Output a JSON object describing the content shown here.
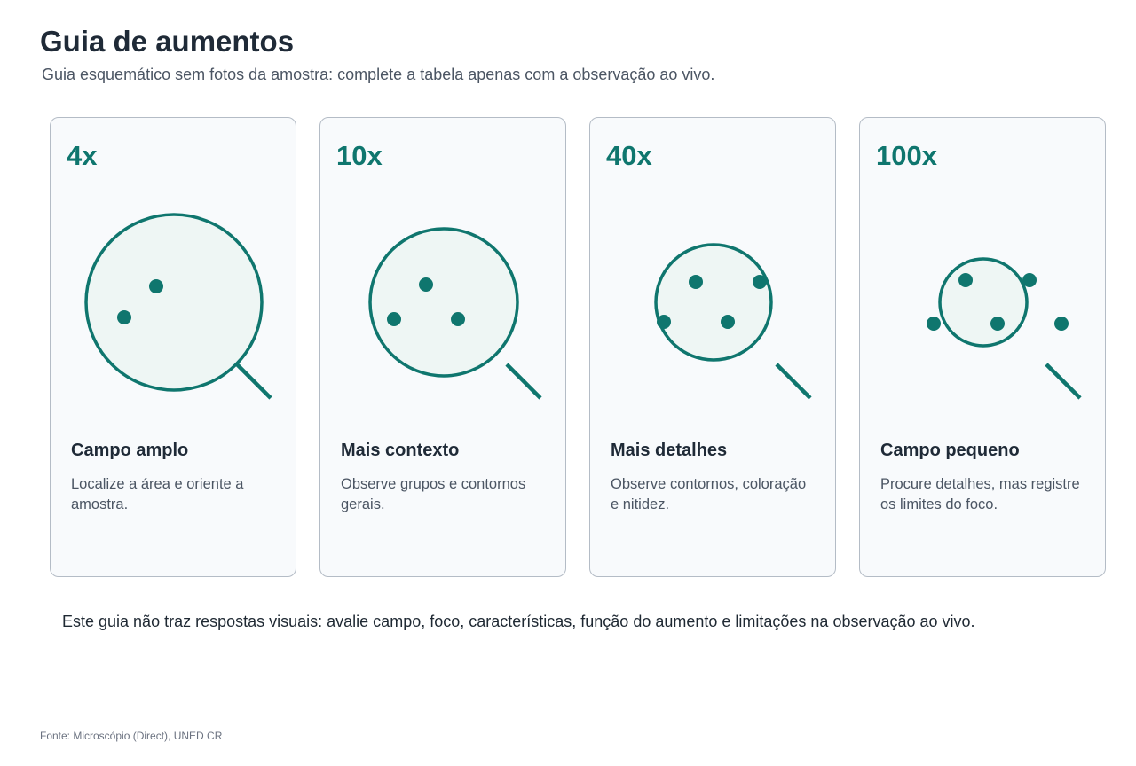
{
  "header": {
    "title": "Guia de aumentos",
    "subtitle": "Guia esquemático sem fotos da amostra: complete a tabela apenas com a observação ao vivo."
  },
  "colors": {
    "accent": "#0f766e",
    "lens_fill": "#eef6f4",
    "card_border": "#b4bcc6",
    "card_bg": "#f8fafc"
  },
  "cards": [
    {
      "label": "4x",
      "heading": "Campo amplo",
      "text": "Localize a área e oriente a amostra.",
      "icon": "magnifier-icon"
    },
    {
      "label": "10x",
      "heading": "Mais contexto",
      "text": "Observe grupos e contornos gerais.",
      "icon": "magnifier-icon"
    },
    {
      "label": "40x",
      "heading": "Mais detalhes",
      "text": "Observe contornos, coloração e nitidez.",
      "icon": "magnifier-icon"
    },
    {
      "label": "100x",
      "heading": "Campo pequeno",
      "text": "Procure detalhes, mas registre os limites do foco.",
      "icon": "magnifier-icon"
    }
  ],
  "note": "Este guia não traz respostas visuais: avalie campo, foco, características, função do aumento e limitações na observação ao vivo.",
  "source": "Fonte: Microscópio (Direct), UNED CR"
}
